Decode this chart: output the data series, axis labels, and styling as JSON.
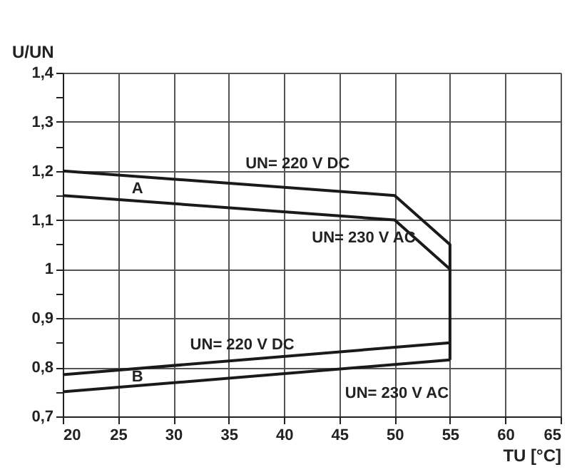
{
  "chart_data": {
    "type": "line",
    "xlabel": "TU [°C]",
    "ylabel": "U/UN",
    "xlim": [
      20,
      65
    ],
    "xticks": [
      20,
      25,
      30,
      35,
      40,
      45,
      50,
      55,
      60,
      65
    ],
    "ylim": [
      0.7,
      1.4
    ],
    "yticks": [
      {
        "value": 0.7,
        "label": "0,7"
      },
      {
        "value": 0.75,
        "label": null
      },
      {
        "value": 0.8,
        "label": "0,8"
      },
      {
        "value": 0.85,
        "label": null
      },
      {
        "value": 0.9,
        "label": "0,9"
      },
      {
        "value": 0.95,
        "label": null
      },
      {
        "value": 1,
        "label": "1"
      },
      {
        "value": 1.05,
        "label": null
      },
      {
        "value": 1.1,
        "label": "1,1"
      },
      {
        "value": 1.15,
        "label": null
      },
      {
        "value": 1.2,
        "label": "1,2"
      },
      {
        "value": 1.25,
        "label": null
      },
      {
        "value": 1.3,
        "label": "1,3"
      },
      {
        "value": 1.35,
        "label": null
      },
      {
        "value": 1.4,
        "label": "1,4"
      }
    ],
    "grid": true,
    "marker": "none",
    "line_style": "solid",
    "legend": false,
    "series": [
      {
        "color": "#1a1a1a",
        "x": [
          20,
          50,
          55,
          55
        ],
        "values": [
          1.2,
          1.15,
          1.05,
          0.815
        ]
      },
      {
        "color": "#1a1a1a",
        "x": [
          20,
          50,
          55
        ],
        "values": [
          1.15,
          1.1,
          1.0
        ]
      },
      {
        "color": "#1a1a1a",
        "x": [
          20,
          55
        ],
        "values": [
          0.785,
          0.85
        ]
      },
      {
        "color": "#1a1a1a",
        "x": [
          20,
          55
        ],
        "values": [
          0.75,
          0.815
        ]
      }
    ],
    "annotations": [
      {
        "text": "UN= 220 V DC",
        "x": 36,
        "y": 1.173
      },
      "A",
      {
        "text": "UN= 230 V AC",
        "x": 42,
        "y": 1.113
      },
      {
        "text": "UN= 220 V DC",
        "x": 31,
        "y": 0.805
      },
      "B",
      {
        "text": "UN= 230 V AC",
        "x": 45,
        "y": 0.796
      }
    ]
  }
}
